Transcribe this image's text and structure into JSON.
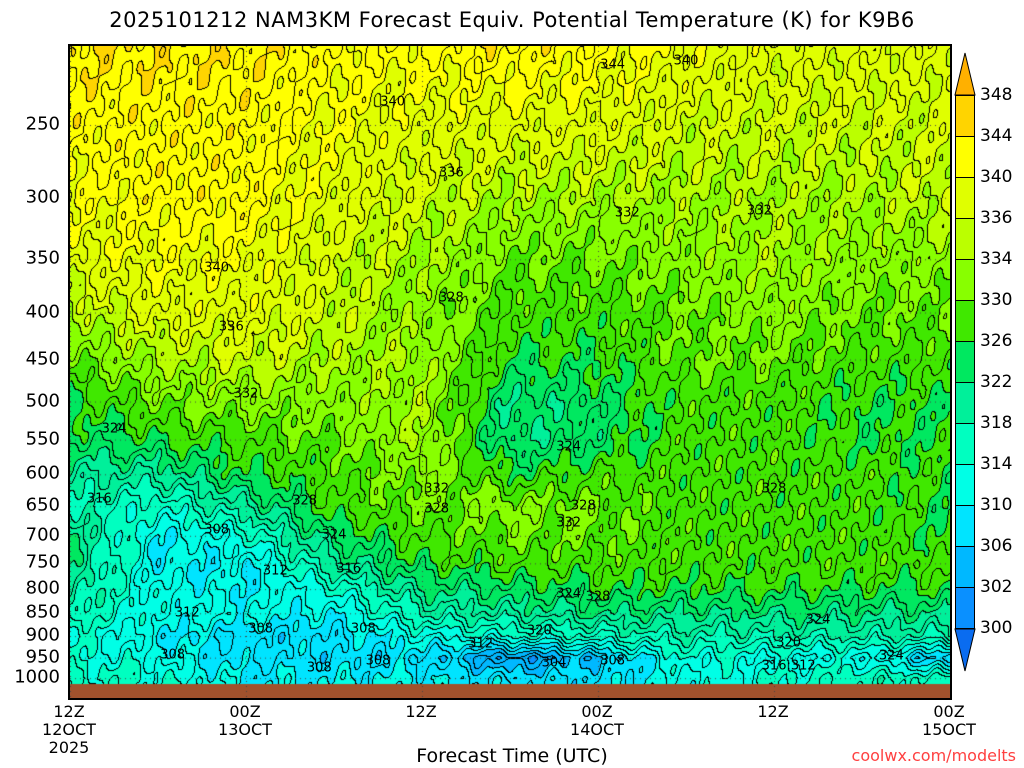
{
  "chart_data": {
    "type": "heatmap",
    "title": "2025101212 NAM3KM Forecast Equiv. Potential Temperature (K) for K9B6",
    "xlabel": "Forecast Time (UTC)",
    "ylabel": "",
    "credit": "coolwx.com/modelts",
    "x_ticks": [
      {
        "hour": 0,
        "label": "12Z\n12OCT\n2025"
      },
      {
        "hour": 12,
        "label": "00Z\n13OCT"
      },
      {
        "hour": 24,
        "label": "12Z"
      },
      {
        "hour": 36,
        "label": "00Z\n14OCT"
      },
      {
        "hour": 48,
        "label": "12Z"
      },
      {
        "hour": 60,
        "label": "00Z\n15OCT"
      }
    ],
    "y_ticks": [
      "250",
      "300",
      "350",
      "400",
      "450",
      "500",
      "550",
      "600",
      "650",
      "700",
      "750",
      "800",
      "850",
      "900",
      "950",
      "1000"
    ],
    "y_scale": "log-pressure",
    "ylim_hPa": [
      1010,
      205
    ],
    "xlim_hours": [
      0,
      60
    ],
    "colorbar": {
      "levels": [
        300,
        302,
        306,
        310,
        314,
        318,
        322,
        326,
        330,
        334,
        336,
        340,
        344,
        348
      ],
      "labels": [
        "300",
        "302",
        "306",
        "310",
        "314",
        "318",
        "322",
        "326",
        "330",
        "334",
        "336",
        "340",
        "344",
        "348"
      ],
      "colors": [
        "#0a6cf0",
        "#0a90ff",
        "#00b8ff",
        "#00e4ff",
        "#00ffe6",
        "#00ffc0",
        "#00f09a",
        "#00e860",
        "#40e800",
        "#88ff00",
        "#bbff00",
        "#e0ff00",
        "#ffff00",
        "#ffd400",
        "#ffb000"
      ]
    },
    "ground_color": "#a0522d",
    "hours": [
      0,
      6,
      12,
      18,
      24,
      30,
      36,
      42,
      48,
      54,
      60
    ],
    "pressures": [
      1000,
      950,
      900,
      850,
      800,
      750,
      700,
      650,
      600,
      550,
      500,
      450,
      400,
      350,
      300,
      250,
      200
    ],
    "theta_e": [
      [
        316,
        314,
        314,
        318,
        320,
        322,
        322,
        318,
        320,
        324,
        326,
        330,
        334,
        338,
        340,
        342,
        344
      ],
      [
        314,
        312,
        310,
        312,
        312,
        310,
        310,
        314,
        320,
        326,
        330,
        334,
        338,
        340,
        342,
        342,
        344
      ],
      [
        310,
        308,
        308,
        312,
        310,
        310,
        314,
        320,
        326,
        328,
        332,
        336,
        338,
        340,
        342,
        342,
        344
      ],
      [
        310,
        308,
        308,
        310,
        314,
        320,
        324,
        328,
        328,
        330,
        332,
        334,
        336,
        336,
        338,
        340,
        342
      ],
      [
        310,
        308,
        312,
        318,
        322,
        326,
        328,
        330,
        332,
        334,
        334,
        334,
        332,
        334,
        336,
        338,
        342
      ],
      [
        308,
        302,
        314,
        320,
        324,
        328,
        330,
        332,
        326,
        322,
        322,
        326,
        328,
        330,
        334,
        338,
        344
      ],
      [
        308,
        306,
        316,
        322,
        326,
        328,
        330,
        330,
        328,
        324,
        324,
        326,
        328,
        330,
        334,
        338,
        342
      ],
      [
        312,
        314,
        318,
        322,
        326,
        328,
        328,
        328,
        328,
        328,
        328,
        330,
        330,
        332,
        334,
        336,
        340
      ],
      [
        314,
        312,
        318,
        322,
        326,
        328,
        328,
        328,
        328,
        328,
        328,
        330,
        332,
        334,
        334,
        336,
        338
      ],
      [
        316,
        312,
        318,
        322,
        326,
        328,
        328,
        328,
        328,
        326,
        326,
        328,
        330,
        332,
        334,
        336,
        338
      ],
      [
        316,
        306,
        318,
        322,
        326,
        328,
        326,
        326,
        326,
        326,
        326,
        328,
        330,
        332,
        336,
        336,
        338
      ]
    ],
    "contour_labels": [
      {
        "text": "344",
        "hour": 37,
        "p": 215
      },
      {
        "text": "340",
        "hour": 42,
        "p": 213
      },
      {
        "text": "340",
        "hour": 22,
        "p": 236
      },
      {
        "text": "336",
        "hour": 26,
        "p": 282
      },
      {
        "text": "332",
        "hour": 38,
        "p": 312
      },
      {
        "text": "332",
        "hour": 47,
        "p": 310
      },
      {
        "text": "340",
        "hour": 10,
        "p": 358
      },
      {
        "text": "328",
        "hour": 26,
        "p": 386
      },
      {
        "text": "336",
        "hour": 11,
        "p": 415
      },
      {
        "text": "332",
        "hour": 12,
        "p": 490
      },
      {
        "text": "324",
        "hour": 3,
        "p": 535
      },
      {
        "text": "324",
        "hour": 34,
        "p": 560
      },
      {
        "text": "316",
        "hour": 2,
        "p": 638
      },
      {
        "text": "328",
        "hour": 16,
        "p": 642
      },
      {
        "text": "332",
        "hour": 25,
        "p": 622
      },
      {
        "text": "328",
        "hour": 25,
        "p": 655
      },
      {
        "text": "328",
        "hour": 35,
        "p": 650
      },
      {
        "text": "332",
        "hour": 34,
        "p": 678
      },
      {
        "text": "328",
        "hour": 48,
        "p": 622
      },
      {
        "text": "308",
        "hour": 10,
        "p": 690
      },
      {
        "text": "324",
        "hour": 18,
        "p": 698
      },
      {
        "text": "312",
        "hour": 14,
        "p": 765
      },
      {
        "text": "316",
        "hour": 19,
        "p": 760
      },
      {
        "text": "324",
        "hour": 34,
        "p": 810
      },
      {
        "text": "328",
        "hour": 36,
        "p": 815
      },
      {
        "text": "312",
        "hour": 8,
        "p": 850
      },
      {
        "text": "308",
        "hour": 13,
        "p": 885
      },
      {
        "text": "308",
        "hour": 20,
        "p": 885
      },
      {
        "text": "320",
        "hour": 32,
        "p": 888
      },
      {
        "text": "324",
        "hour": 51,
        "p": 865
      },
      {
        "text": "312",
        "hour": 28,
        "p": 918
      },
      {
        "text": "320",
        "hour": 49,
        "p": 915
      },
      {
        "text": "308",
        "hour": 7,
        "p": 944
      },
      {
        "text": "308",
        "hour": 17,
        "p": 975
      },
      {
        "text": "308",
        "hour": 21,
        "p": 958
      },
      {
        "text": "304",
        "hour": 33,
        "p": 962
      },
      {
        "text": "308",
        "hour": 37,
        "p": 958
      },
      {
        "text": "324",
        "hour": 56,
        "p": 945
      },
      {
        "text": "316:312",
        "hour": 49,
        "p": 970
      }
    ]
  }
}
